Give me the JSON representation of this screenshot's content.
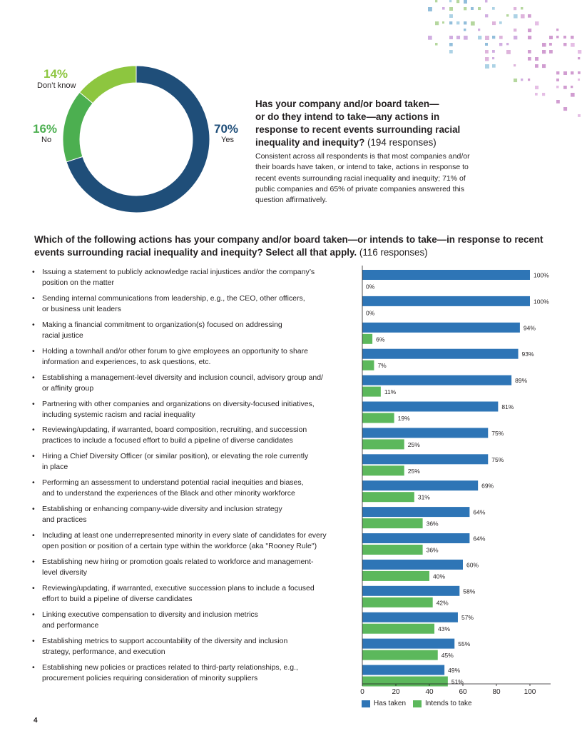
{
  "chart_data": [
    {
      "type": "pie",
      "title": "Has your company and/or board taken—or do they intend to take—any actions in response to recent events surrounding racial inequality and inequity?",
      "responses": "(194 responses)",
      "body": "Consistent across all respondents is that most companies and/or their boards have taken, or intend to take, actions in response to recent events surrounding racial inequality and inequity; 71% of public companies and 65% of private companies answered this question affirmatively.",
      "slices": [
        {
          "label": "Yes",
          "pct_text": "70%",
          "value": 70,
          "color": "#1f4e79"
        },
        {
          "label": "No",
          "pct_text": "16%",
          "value": 16,
          "color": "#4caf50"
        },
        {
          "label": "Don’t know",
          "pct_text": "14%",
          "value": 14,
          "color": "#8dc63f"
        }
      ]
    },
    {
      "type": "bar",
      "orientation": "horizontal",
      "title": "Which of the following actions has your company and/or board taken—or intends to take—in response to recent events surrounding racial inequality and inequity? Select all that apply.",
      "responses": "(116 responses)",
      "xlim": [
        0,
        100
      ],
      "xticks": [
        "0",
        "20",
        "40",
        "60",
        "80",
        "100"
      ],
      "series": [
        {
          "name": "Has taken",
          "color": "#2e75b6",
          "values": [
            100,
            100,
            94,
            93,
            89,
            81,
            75,
            75,
            69,
            64,
            64,
            60,
            58,
            57,
            55,
            49
          ]
        },
        {
          "name": "Intends to take",
          "color": "#5cb85c",
          "values": [
            0,
            0,
            6,
            7,
            11,
            19,
            25,
            25,
            31,
            36,
            36,
            40,
            42,
            43,
            45,
            51
          ]
        }
      ],
      "categories": [
        "Issuing a statement to publicly acknowledge racial injustices and/or the company’s position on the matter",
        "Sending internal communications from leadership, e.g., the CEO, other officers, or business unit leaders",
        "Making a financial commitment to organization(s) focused on addressing racial justice",
        "Holding a townhall and/or other forum to give employees an opportunity to share information and experiences, to ask questions, etc.",
        "Establishing a management-level diversity and inclusion council, advisory group and/ or affinity group",
        "Partnering with other companies and organizations on diversity-focused initiatives, including systemic racism and racial inequality",
        "Reviewing/updating, if warranted, board composition, recruiting, and succession practices to include a focused effort to build a pipeline of diverse candidates",
        "Hiring a Chief Diversity Officer (or similar position), or elevating the role currently in place",
        "Performing an assessment to understand potential racial inequities and biases, and to understand the experiences of the Black and other minority workforce",
        "Establishing or enhancing company-wide diversity and inclusion strategy and practices",
        "Including at least one underrepresented minority in every slate of candidates for every open position or position of a certain type within the workforce (aka \"Rooney Rule\")",
        "Establishing new hiring or promotion goals related to workforce and management-level diversity",
        "Reviewing/updating, if warranted, executive succession plans to include a focused effort to build a pipeline of diverse candidates",
        "Linking executive compensation to diversity and inclusion metrics and performance",
        "Establishing metrics to support accountability of the diversity and inclusion strategy, performance, and execution",
        "Establishing new policies or practices related to third-party relationships, e.g., procurement policies requiring consideration of minority suppliers"
      ],
      "category_lines": [
        [
          "Issuing a statement to publicly acknowledge racial injustices and/or the company’s",
          "position on the matter"
        ],
        [
          "Sending internal communications from leadership, e.g., the CEO, other officers,",
          "or business unit leaders"
        ],
        [
          "Making a financial commitment to organization(s) focused on addressing",
          "racial justice"
        ],
        [
          "Holding a townhall and/or other forum to give employees an opportunity to share",
          "information and experiences, to ask questions, etc."
        ],
        [
          "Establishing a management-level diversity and inclusion council, advisory group and/",
          "or affinity group"
        ],
        [
          "Partnering with other companies and organizations on diversity-focused initiatives,",
          "including systemic racism and racial inequality"
        ],
        [
          "Reviewing/updating, if warranted, board composition, recruiting, and succession",
          "practices to include a focused effort to build a pipeline of diverse candidates"
        ],
        [
          "Hiring a Chief Diversity Officer (or similar position), or elevating the role currently",
          "in place"
        ],
        [
          "Performing an assessment to understand potential racial inequities and biases,",
          "and to understand the experiences of the Black and other minority workforce"
        ],
        [
          "Establishing or enhancing company-wide diversity and inclusion strategy",
          "and practices"
        ],
        [
          "Including at least one underrepresented minority in every slate of candidates for every",
          "open position or position of a certain type within the workforce (aka \"Rooney Rule\")"
        ],
        [
          "Establishing new hiring or promotion goals related to workforce and management-",
          "level diversity"
        ],
        [
          "Reviewing/updating, if warranted, executive succession plans to include a focused",
          "effort to build a pipeline of diverse candidates"
        ],
        [
          "Linking executive compensation to diversity and inclusion metrics",
          "and performance"
        ],
        [
          "Establishing metrics to support accountability of the diversity and inclusion",
          "strategy, performance, and execution"
        ],
        [
          "Establishing new policies or practices related to third-party relationships, e.g.,",
          "procurement policies requiring consideration of minority suppliers"
        ]
      ],
      "legend": [
        "Has taken",
        "Intends to take"
      ],
      "legend_placement": "bottom"
    }
  ],
  "q1": {
    "title_lines": [
      "Has your company and/or board taken—",
      "or do they intend to take—any actions in",
      "response to recent events surrounding racial",
      "inequality and inequity?"
    ],
    "responses": " (194 responses)"
  },
  "q2": {
    "title": "Which of the following actions has your company and/or board taken—or intends to take—in response to recent events surrounding racial inequality and inequity? Select all that apply.",
    "responses": " (116 responses)"
  },
  "bullet": "•",
  "page_number": "4"
}
